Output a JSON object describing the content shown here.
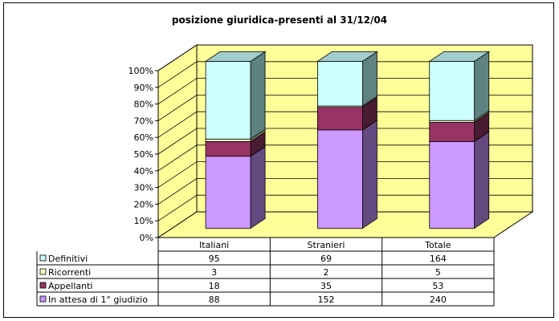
{
  "chart_data": {
    "type": "bar",
    "stacked": "percent",
    "three_d": true,
    "title": "posizione giuridica-presenti al 31/12/04",
    "categories": [
      "Italiani",
      "Stranieri",
      "Totale"
    ],
    "y_ticks": [
      "0%",
      "10%",
      "20%",
      "30%",
      "40%",
      "50%",
      "60%",
      "70%",
      "80%",
      "90%",
      "100%"
    ],
    "ylim": [
      0,
      100
    ],
    "grid": true,
    "legend": "data-table-left",
    "series": [
      {
        "name": "In attesa di 1° giudizio",
        "values": [
          88,
          152,
          240
        ],
        "color": "#cc99ff",
        "dark": "#644a80"
      },
      {
        "name": "Appellanti",
        "values": [
          18,
          35,
          53
        ],
        "color": "#993366",
        "dark": "#4a1c32"
      },
      {
        "name": "Ricorrenti",
        "values": [
          3,
          2,
          5
        ],
        "color": "#ffffcc",
        "dark": "#8a8a6a"
      },
      {
        "name": "Definitivi",
        "values": [
          95,
          69,
          164
        ],
        "color": "#ccffff",
        "dark": "#5e8282"
      }
    ],
    "table_order": [
      3,
      2,
      1,
      0
    ],
    "wall_color": "#ffff99",
    "floor_color": "#ffff99"
  }
}
